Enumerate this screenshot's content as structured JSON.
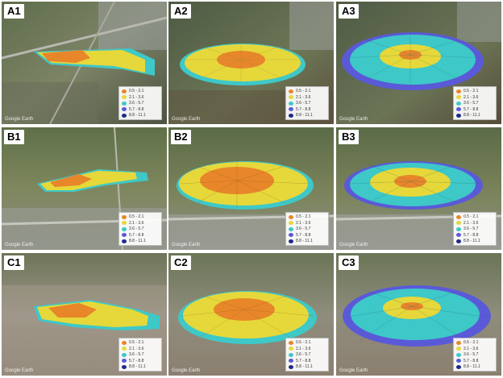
{
  "colors": {
    "bin1": "#e8862a",
    "bin2": "#e6d83a",
    "bin3": "#3ec8c8",
    "bin4": "#5a5ad8",
    "bin5": "#1e2a8a"
  },
  "legend": [
    "0.5 - 2.1",
    "2.1 - 3.6",
    "3.6 - 5.7",
    "5.7 - 8.8",
    "8.8 - 11.1"
  ],
  "watermark": "Google Earth",
  "panels": [
    {
      "label": "A1",
      "watermark": "Google Earth"
    },
    {
      "label": "A2",
      "watermark": "Google Earth"
    },
    {
      "label": "A3",
      "watermark": "Google Earth"
    },
    {
      "label": "B1",
      "watermark": "Google Earth"
    },
    {
      "label": "B2",
      "watermark": "Google Earth"
    },
    {
      "label": "B3",
      "watermark": "Google Earth"
    },
    {
      "label": "C1",
      "watermark": "Google Earth"
    },
    {
      "label": "C2",
      "watermark": "Google Earth"
    },
    {
      "label": "C3",
      "watermark": "Google Earth"
    }
  ],
  "icons": {
    "map-background": "aerial-map-icon",
    "wind-rose": "wind-rose-icon"
  }
}
